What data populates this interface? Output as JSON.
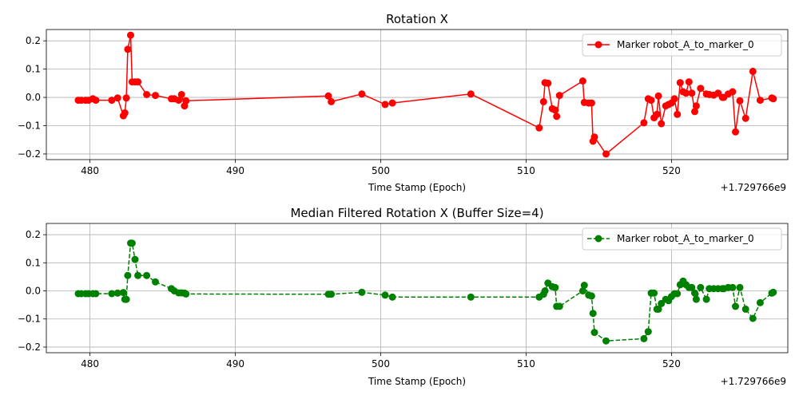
{
  "chart_data": [
    {
      "type": "line",
      "title": "Rotation X",
      "xlabel": "Time Stamp (Epoch)",
      "ylabel": "",
      "x_offset_label": "+1.729766e9",
      "xlim": [
        477,
        528
      ],
      "ylim": [
        -0.22,
        0.24
      ],
      "xticks": [
        480,
        490,
        500,
        510,
        520
      ],
      "yticks": [
        -0.2,
        -0.1,
        0.0,
        0.1,
        0.2
      ],
      "xtick_labels": [
        "480",
        "490",
        "500",
        "510",
        "520"
      ],
      "ytick_labels": [
        "−0.2",
        "−0.1",
        "0.0",
        "0.1",
        "0.2"
      ],
      "grid": true,
      "legend": "top-right",
      "series": [
        {
          "name": "Marker robot_A_to_marker_0",
          "color": "#ff0000",
          "line_style": "solid",
          "marker": "circle",
          "x": [
            479.2,
            479.4,
            479.7,
            479.9,
            480.2,
            480.4,
            481.5,
            481.9,
            482.3,
            482.4,
            482.5,
            482.6,
            482.8,
            482.9,
            483.1,
            483.3,
            483.9,
            484.5,
            485.6,
            485.8,
            486.1,
            486.3,
            486.5,
            486.6,
            496.4,
            496.6,
            498.7,
            500.3,
            500.8,
            506.2,
            510.9,
            511.2,
            511.3,
            511.5,
            511.8,
            512.0,
            512.1,
            512.3,
            513.9,
            514.0,
            514.3,
            514.5,
            514.6,
            514.7,
            515.5,
            518.1,
            518.4,
            518.6,
            518.8,
            519.0,
            519.1,
            519.3,
            519.6,
            519.8,
            520.0,
            520.2,
            520.4,
            520.6,
            520.8,
            521.0,
            521.2,
            521.4,
            521.6,
            521.7,
            522.0,
            522.4,
            522.6,
            522.9,
            523.2,
            523.5,
            523.6,
            523.9,
            524.2,
            524.4,
            524.7,
            525.1,
            525.6,
            526.1,
            526.9,
            527.0
          ],
          "y": [
            -0.01,
            -0.01,
            -0.01,
            -0.01,
            -0.005,
            -0.01,
            -0.01,
            -0.002,
            -0.065,
            -0.055,
            -0.002,
            0.17,
            0.22,
            0.055,
            0.055,
            0.055,
            0.01,
            0.007,
            -0.005,
            -0.005,
            -0.01,
            0.01,
            -0.03,
            -0.012,
            0.005,
            -0.015,
            0.012,
            -0.025,
            -0.02,
            0.012,
            -0.108,
            -0.015,
            0.052,
            0.05,
            -0.04,
            -0.045,
            -0.067,
            0.007,
            0.058,
            -0.018,
            -0.02,
            -0.02,
            -0.155,
            -0.14,
            -0.2,
            -0.09,
            -0.005,
            -0.01,
            -0.072,
            -0.06,
            0.005,
            -0.093,
            -0.03,
            -0.025,
            -0.02,
            -0.005,
            -0.06,
            0.052,
            0.02,
            0.015,
            0.055,
            0.015,
            -0.05,
            -0.03,
            0.032,
            0.012,
            0.01,
            0.008,
            0.015,
            0.0,
            0.0,
            0.012,
            0.02,
            -0.122,
            -0.012,
            -0.074,
            0.092,
            -0.01,
            -0.002,
            -0.005
          ]
        }
      ]
    },
    {
      "type": "line",
      "title": "Median Filtered Rotation X (Buffer Size=4)",
      "xlabel": "Time Stamp (Epoch)",
      "ylabel": "",
      "x_offset_label": "+1.729766e9",
      "xlim": [
        477,
        528
      ],
      "ylim": [
        -0.22,
        0.24
      ],
      "xticks": [
        480,
        490,
        500,
        510,
        520
      ],
      "yticks": [
        -0.2,
        -0.1,
        0.0,
        0.1,
        0.2
      ],
      "xtick_labels": [
        "480",
        "490",
        "500",
        "510",
        "520"
      ],
      "ytick_labels": [
        "−0.2",
        "−0.1",
        "0.0",
        "0.1",
        "0.2"
      ],
      "grid": true,
      "legend": "top-right",
      "series": [
        {
          "name": "Marker robot_A_to_marker_0",
          "color": "#008000",
          "line_style": "dashed",
          "marker": "circle",
          "x": [
            479.2,
            479.4,
            479.7,
            479.9,
            480.2,
            480.4,
            481.5,
            481.9,
            482.3,
            482.4,
            482.5,
            482.6,
            482.8,
            482.9,
            483.1,
            483.3,
            483.9,
            484.5,
            485.6,
            485.8,
            486.1,
            486.3,
            486.5,
            486.6,
            496.4,
            496.6,
            498.7,
            500.3,
            500.8,
            506.2,
            510.9,
            511.2,
            511.3,
            511.5,
            511.8,
            512.0,
            512.1,
            512.3,
            513.9,
            514.0,
            514.3,
            514.5,
            514.6,
            514.7,
            515.5,
            518.1,
            518.4,
            518.6,
            518.8,
            519.0,
            519.1,
            519.3,
            519.6,
            519.8,
            520.0,
            520.2,
            520.4,
            520.6,
            520.8,
            521.0,
            521.2,
            521.4,
            521.6,
            521.7,
            522.0,
            522.4,
            522.6,
            522.9,
            523.2,
            523.5,
            523.6,
            523.9,
            524.2,
            524.4,
            524.7,
            525.1,
            525.6,
            526.1,
            526.9,
            527.0
          ],
          "y": [
            -0.01,
            -0.01,
            -0.01,
            -0.01,
            -0.01,
            -0.01,
            -0.01,
            -0.008,
            -0.006,
            -0.03,
            -0.03,
            0.055,
            0.17,
            0.17,
            0.112,
            0.055,
            0.055,
            0.032,
            0.008,
            0.0,
            -0.007,
            -0.007,
            -0.008,
            -0.011,
            -0.012,
            -0.012,
            -0.005,
            -0.015,
            -0.022,
            -0.022,
            -0.022,
            -0.012,
            0.0,
            0.028,
            0.015,
            0.012,
            -0.055,
            -0.055,
            0.0,
            0.02,
            -0.015,
            -0.018,
            -0.08,
            -0.148,
            -0.178,
            -0.17,
            -0.145,
            -0.008,
            -0.008,
            -0.065,
            -0.065,
            -0.045,
            -0.03,
            -0.035,
            -0.02,
            -0.01,
            -0.01,
            0.022,
            0.035,
            0.022,
            0.012,
            0.012,
            -0.008,
            -0.03,
            0.012,
            -0.03,
            0.008,
            0.008,
            0.008,
            0.008,
            0.008,
            0.012,
            0.012,
            -0.055,
            0.012,
            -0.065,
            -0.098,
            -0.042,
            -0.008,
            -0.005
          ]
        }
      ]
    }
  ]
}
